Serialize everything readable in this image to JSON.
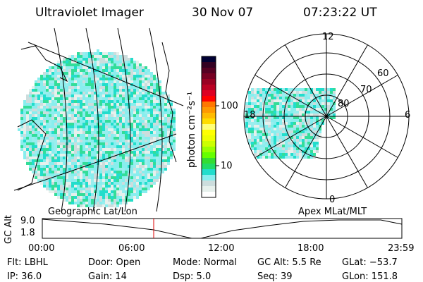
{
  "header": {
    "instrument": "Ultraviolet Imager",
    "date": "30 Nov 07",
    "time": "07:23:22 UT"
  },
  "colorbar": {
    "unit_label": "photon cm⁻²s⁻¹",
    "ticks": [
      "100",
      "10"
    ],
    "colors": [
      "#000033",
      "#330022",
      "#550022",
      "#770022",
      "#990022",
      "#bb0022",
      "#dd0022",
      "#ff0000",
      "#ff7700",
      "#ff9900",
      "#ffbb00",
      "#ffdd00",
      "#ffff77",
      "#ffff00",
      "#eeff00",
      "#ccff00",
      "#99ff00",
      "#66ff00",
      "#33dd33",
      "#22dd66",
      "#22ddcc",
      "#88eeee",
      "#ccdddd",
      "#e6f0ec",
      "#ffffff"
    ]
  },
  "polar": {
    "labels": {
      "top": "12",
      "bottom": "0",
      "left": "18",
      "right": "6"
    },
    "rings": [
      "80",
      "70",
      "60"
    ]
  },
  "timeline": {
    "left_label": "Geographic Lat/Lon",
    "right_label": "Apex MLat/MLT",
    "ylabel": "GC Alt",
    "yticks": [
      "9.0",
      "1.8"
    ],
    "xticks": [
      "00:00",
      "06:00",
      "12:00",
      "18:00",
      "23:59"
    ],
    "current_time_color": "#dd0000"
  },
  "info": [
    [
      "Flt: LBHL",
      "Door: Open",
      "Mode: Normal",
      "GC Alt: 5.5 Re",
      "GLat: −53.7"
    ],
    [
      "IP: 36.0",
      "Gain: 14",
      "Dsp:     5.0",
      "Seq: 39",
      "GLon: 151.8"
    ]
  ]
}
